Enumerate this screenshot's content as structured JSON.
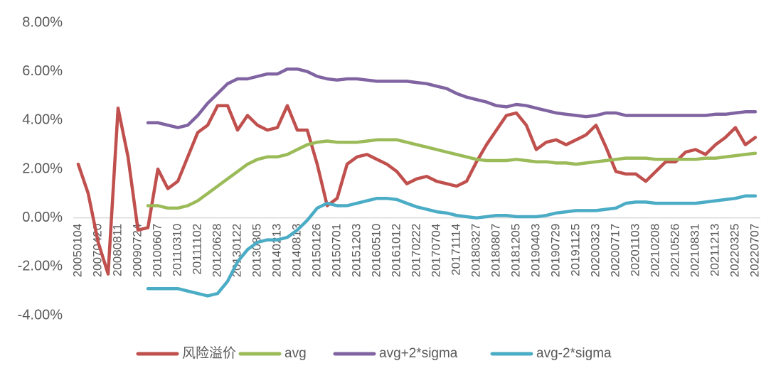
{
  "chart_data": {
    "type": "line",
    "categories": [
      "20050104",
      null,
      "20070420",
      null,
      "20080811",
      null,
      "20090724",
      null,
      "20100607",
      null,
      "20110310",
      null,
      "20111102",
      null,
      "20120628",
      null,
      "20130122",
      null,
      "20130805",
      null,
      "20140213",
      null,
      "20140813",
      null,
      "20150126",
      null,
      "20150701",
      null,
      "20151203",
      null,
      "20160510",
      null,
      "20161012",
      null,
      "20170222",
      null,
      "20170704",
      null,
      "20171114",
      null,
      "20180327",
      null,
      "20180807",
      null,
      "20181205",
      null,
      "20190403",
      null,
      "20190729",
      null,
      "20191125",
      null,
      "20200323",
      null,
      "20200717",
      null,
      "20201103",
      null,
      "20210208",
      null,
      "20210526",
      null,
      "20210831",
      null,
      "20211213",
      null,
      "20220325",
      null,
      "20220707"
    ],
    "series": [
      {
        "name": "风险溢价",
        "color": "#c0504d",
        "values": [
          2.2,
          1.0,
          -1.0,
          -2.3,
          4.5,
          2.5,
          -0.5,
          -0.4,
          2.0,
          1.2,
          1.5,
          2.5,
          3.5,
          3.8,
          4.6,
          4.6,
          3.6,
          4.2,
          3.8,
          3.6,
          3.7,
          4.6,
          3.6,
          3.6,
          2.2,
          0.5,
          0.8,
          2.2,
          2.5,
          2.6,
          2.4,
          2.2,
          1.9,
          1.4,
          1.6,
          1.7,
          1.5,
          1.4,
          1.3,
          1.5,
          2.3,
          3.0,
          3.6,
          4.2,
          4.3,
          3.8,
          2.8,
          3.1,
          3.2,
          3.0,
          3.2,
          3.4,
          3.8,
          2.9,
          1.9,
          1.8,
          1.8,
          1.5,
          1.9,
          2.3,
          2.3,
          2.7,
          2.8,
          2.6,
          3.0,
          3.3,
          3.7,
          3.0,
          3.3
        ]
      },
      {
        "name": "avg",
        "color": "#9bbb59",
        "values": [
          null,
          null,
          null,
          null,
          null,
          null,
          null,
          0.5,
          0.5,
          0.4,
          0.4,
          0.5,
          0.7,
          1.0,
          1.3,
          1.6,
          1.9,
          2.2,
          2.4,
          2.5,
          2.5,
          2.6,
          2.8,
          3.0,
          3.1,
          3.15,
          3.1,
          3.1,
          3.1,
          3.15,
          3.2,
          3.2,
          3.2,
          3.1,
          3.0,
          2.9,
          2.8,
          2.7,
          2.6,
          2.5,
          2.4,
          2.35,
          2.35,
          2.35,
          2.4,
          2.35,
          2.3,
          2.3,
          2.25,
          2.25,
          2.2,
          2.25,
          2.3,
          2.35,
          2.4,
          2.45,
          2.45,
          2.45,
          2.4,
          2.4,
          2.4,
          2.4,
          2.4,
          2.45,
          2.45,
          2.5,
          2.55,
          2.6,
          2.65
        ]
      },
      {
        "name": "avg+2*sigma",
        "color": "#8064a2",
        "values": [
          null,
          null,
          null,
          null,
          null,
          null,
          null,
          3.9,
          3.9,
          3.8,
          3.7,
          3.8,
          4.2,
          4.7,
          5.1,
          5.5,
          5.7,
          5.7,
          5.8,
          5.9,
          5.9,
          6.1,
          6.1,
          6.0,
          5.8,
          5.7,
          5.65,
          5.7,
          5.7,
          5.65,
          5.6,
          5.6,
          5.6,
          5.6,
          5.55,
          5.5,
          5.4,
          5.3,
          5.1,
          4.95,
          4.85,
          4.75,
          4.6,
          4.55,
          4.65,
          4.6,
          4.5,
          4.4,
          4.3,
          4.25,
          4.2,
          4.15,
          4.2,
          4.3,
          4.3,
          4.2,
          4.2,
          4.2,
          4.2,
          4.2,
          4.2,
          4.2,
          4.2,
          4.2,
          4.25,
          4.25,
          4.3,
          4.35,
          4.35
        ]
      },
      {
        "name": "avg-2*sigma",
        "color": "#4bacc6",
        "values": [
          null,
          null,
          null,
          null,
          null,
          null,
          null,
          -2.9,
          -2.9,
          -2.9,
          -2.9,
          -3.0,
          -3.1,
          -3.2,
          -3.1,
          -2.6,
          -1.8,
          -1.3,
          -1.0,
          -0.9,
          -0.9,
          -0.8,
          -0.5,
          -0.1,
          0.4,
          0.6,
          0.5,
          0.5,
          0.6,
          0.7,
          0.8,
          0.8,
          0.75,
          0.6,
          0.45,
          0.35,
          0.25,
          0.2,
          0.1,
          0.05,
          0.0,
          0.05,
          0.1,
          0.1,
          0.05,
          0.05,
          0.05,
          0.1,
          0.2,
          0.25,
          0.3,
          0.3,
          0.3,
          0.35,
          0.4,
          0.6,
          0.65,
          0.65,
          0.6,
          0.6,
          0.6,
          0.6,
          0.6,
          0.65,
          0.7,
          0.75,
          0.8,
          0.9,
          0.9
        ]
      }
    ],
    "ylim": [
      -4,
      8
    ],
    "yticks": [
      {
        "value": -4,
        "label": "-4.00%"
      },
      {
        "value": -2,
        "label": "-2.00%"
      },
      {
        "value": 0,
        "label": "0.00%"
      },
      {
        "value": 2,
        "label": "2.00%"
      },
      {
        "value": 4,
        "label": "4.00%"
      },
      {
        "value": 6,
        "label": "6.00%"
      },
      {
        "value": 8,
        "label": "8.00%"
      }
    ],
    "grid": false,
    "legend": "bottom"
  }
}
